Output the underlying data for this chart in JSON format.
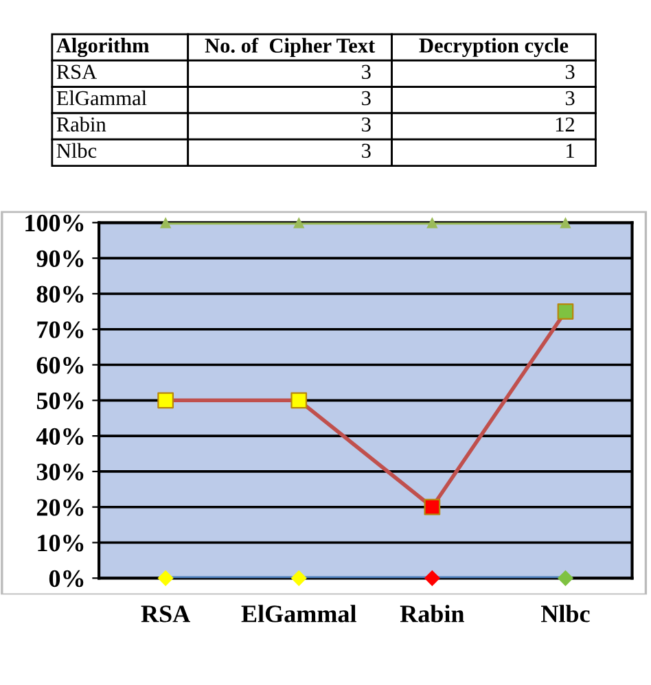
{
  "chart_data": [
    {
      "type": "other",
      "xlabel": "Algorithm",
      "categories": [
        "RSA",
        "ElGammal",
        "Rabin",
        "Nlbc"
      ],
      "data_labels": true,
      "series": [
        {
          "name": "No. of  Cipher Text",
          "values": [
            3,
            3,
            3,
            3
          ]
        },
        {
          "name": "Decryption cycle",
          "values": [
            3,
            3,
            12,
            1
          ]
        }
      ]
    },
    {
      "type": "line",
      "categories": [
        "RSA",
        "ElGammal",
        "Rabin",
        "Nlbc"
      ],
      "ylim": [
        0,
        1
      ],
      "yticks": [
        {
          "value": 0,
          "label": "0%"
        },
        {
          "value": 0.1,
          "label": "10%"
        },
        {
          "value": 0.2,
          "label": "20%"
        },
        {
          "value": 0.3,
          "label": "30%"
        },
        {
          "value": 0.4,
          "label": "40%"
        },
        {
          "value": 0.5,
          "label": "50%"
        },
        {
          "value": 0.6,
          "label": "60%"
        },
        {
          "value": 0.7,
          "label": "70%"
        },
        {
          "value": 0.8,
          "label": "80%"
        },
        {
          "value": 0.9,
          "label": "90%"
        },
        {
          "value": 1,
          "label": "100%"
        }
      ],
      "grid": "y",
      "legend": false,
      "series": [
        {
          "color": "#4f81bd",
          "marker": "diamond",
          "colors": [
            "#ffff00",
            "#ffff00",
            "#ff0000",
            "#7fc241"
          ],
          "values": [
            0,
            0,
            0,
            0
          ]
        },
        {
          "color": "#c0504d",
          "marker": "square",
          "colors": [
            "#ffff00",
            "#ffff00",
            "#ff0000",
            "#7fc241"
          ],
          "values": [
            0.5,
            0.5,
            0.2,
            0.75
          ]
        },
        {
          "color": "#9bbb59",
          "marker": "triangle",
          "colors": [
            "#9bbb59",
            "#9bbb59",
            "#9bbb59",
            "#9bbb59"
          ],
          "values": [
            1,
            1,
            1,
            1
          ]
        }
      ]
    }
  ]
}
